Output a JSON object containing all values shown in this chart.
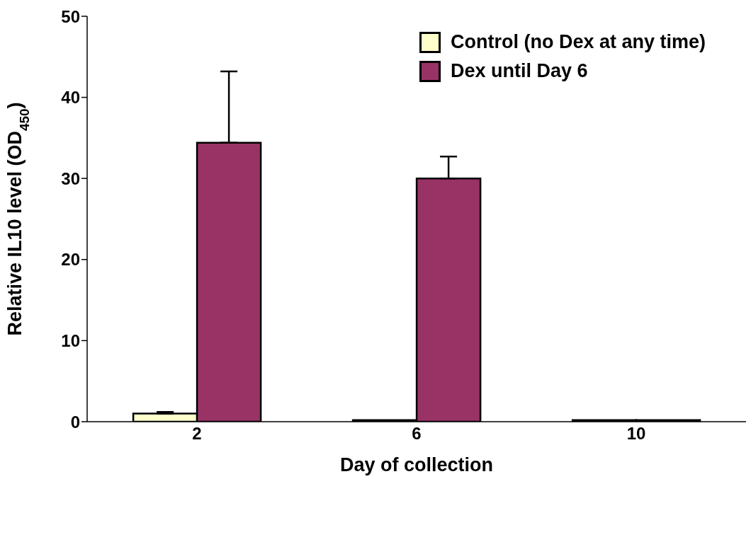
{
  "chart_data": {
    "type": "bar",
    "xlabel": "Day of collection",
    "ylabel": "Relative IL10 level (OD$_{450}$)",
    "categories": [
      "2",
      "6",
      "10"
    ],
    "series": [
      {
        "name": "Control (no Dex at any time)",
        "color": "#ffffcc",
        "values": [
          1.0,
          0.2,
          0.2
        ],
        "errors": [
          [
            1.0,
            1.2
          ],
          null,
          null
        ]
      },
      {
        "name": "Dex until Day 6",
        "color": "#993366",
        "values": [
          34.4,
          30.0,
          0.2
        ],
        "errors": [
          [
            34.4,
            43.2
          ],
          [
            30.0,
            32.7
          ],
          null
        ]
      }
    ],
    "ylim": [
      0,
      50
    ],
    "yticks": [
      0,
      10,
      20,
      30,
      40,
      50
    ],
    "grid": false,
    "legend": "top right"
  }
}
